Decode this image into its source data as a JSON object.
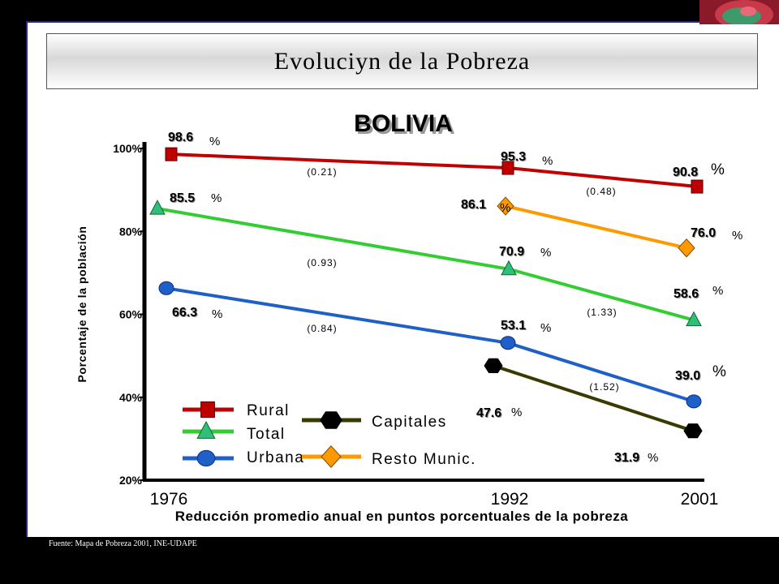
{
  "slide_title": "Evoluciyn de la Pobreza",
  "source_note": "Fuente: Mapa de Pobreza 2001, INE-UDAPE",
  "colors": {
    "rural": "#c00000",
    "total": "#33cc33",
    "urbana": "#1f5fc8",
    "capitales": "#3a3a00",
    "resto": "#ff9900"
  },
  "chart_data": {
    "type": "line",
    "title": "BOLIVIA",
    "ylabel": "Porcentaje de la población",
    "xlabel": "Reducción promedio anual en puntos porcentuales de la pobreza",
    "x": [
      "1976",
      "1992",
      "2001"
    ],
    "ylim": [
      20,
      100
    ],
    "yticks": [
      "20%",
      "40%",
      "60%",
      "80%",
      "100%"
    ],
    "series": [
      {
        "name": "Rural",
        "color": "#c00000",
        "marker": "square",
        "x": [
          1976,
          1992,
          2001
        ],
        "values": [
          98.6,
          95.3,
          90.8
        ],
        "labels": [
          "98.6",
          "95.3",
          "90.8"
        ],
        "rates": [
          "(0.21)",
          "(0.48)"
        ]
      },
      {
        "name": "Total",
        "color": "#33cc33",
        "marker": "triangle",
        "x": [
          1976,
          1992,
          2001
        ],
        "values": [
          85.5,
          70.9,
          58.6
        ],
        "labels": [
          "85.5",
          "70.9",
          "58.6"
        ],
        "rates": [
          "(0.93)",
          "(1.33)"
        ]
      },
      {
        "name": "Urbana",
        "color": "#1f5fc8",
        "marker": "circle",
        "x": [
          1976,
          1992,
          2001
        ],
        "values": [
          66.3,
          53.1,
          39.0
        ],
        "labels": [
          "66.3",
          "53.1",
          "39.0"
        ],
        "rates": [
          "(0.84)",
          "(1.52)"
        ]
      },
      {
        "name": "Capitales",
        "color": "#3a3a00",
        "marker": "hexagon",
        "x": [
          1992,
          2001
        ],
        "values": [
          47.6,
          31.9
        ],
        "labels": [
          "47.6",
          "31.9"
        ],
        "rates": []
      },
      {
        "name": "Resto Munic.",
        "color": "#ff9900",
        "marker": "diamond",
        "x": [
          1992,
          2001
        ],
        "values": [
          86.1,
          76.0
        ],
        "labels": [
          "86.1",
          "76.0"
        ],
        "rates": []
      }
    ],
    "percent_sign": "%",
    "legend_position": "bottom-left",
    "grid": false
  }
}
